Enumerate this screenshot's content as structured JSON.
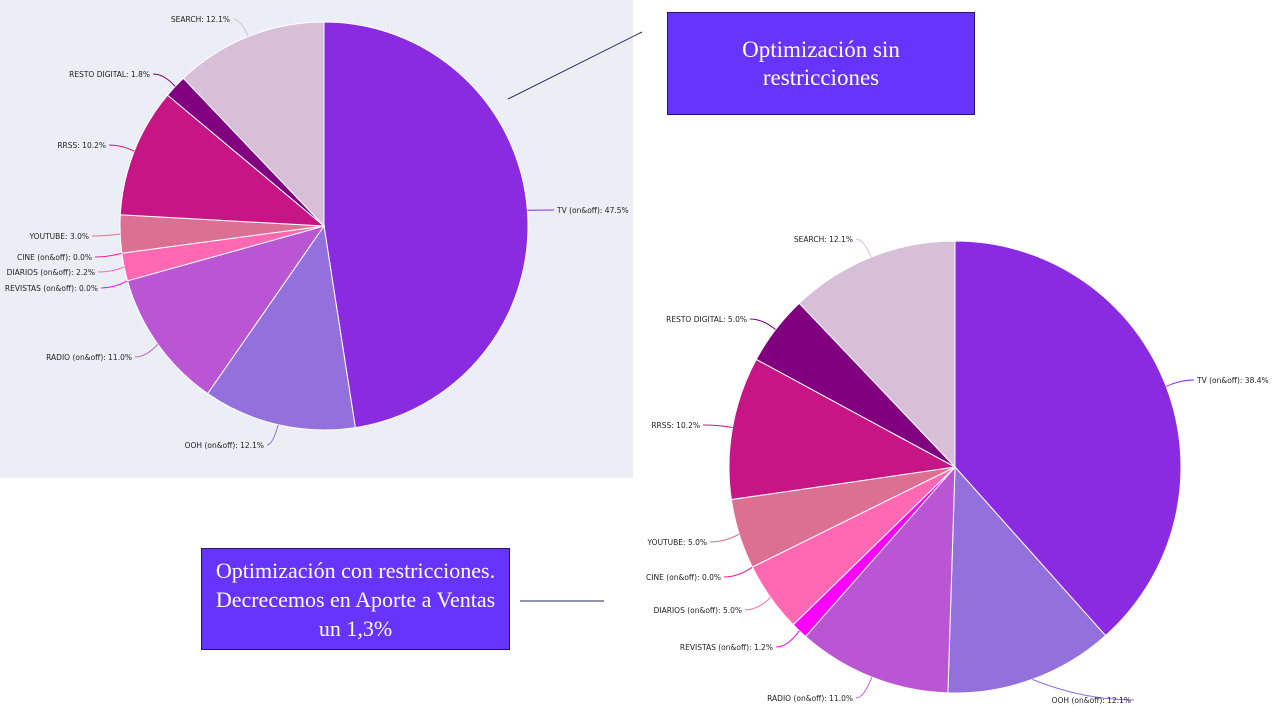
{
  "chart_data": [
    {
      "type": "pie",
      "title": "",
      "start_angle_deg": 0,
      "slices": [
        {
          "label": "TV (on&off): 47.5%",
          "value": 47.5,
          "color": "#8a2be2"
        },
        {
          "label": "OOH (on&off): 12.1%",
          "value": 12.1,
          "color": "#9370db"
        },
        {
          "label": "RADIO (on&off): 11.0%",
          "value": 11.0,
          "color": "#ba55d3"
        },
        {
          "label": "REVISTAS (on&off): 0.0%",
          "value": 0.0,
          "color": "#ff00ff"
        },
        {
          "label": "DIARIOS (on&off): 2.2%",
          "value": 2.2,
          "color": "#ff69b4"
        },
        {
          "label": "CINE (on&off): 0.0%",
          "value": 0.0,
          "color": "#ff1493"
        },
        {
          "label": "YOUTUBE: 3.0%",
          "value": 3.0,
          "color": "#db7093"
        },
        {
          "label": "RRSS: 10.2%",
          "value": 10.2,
          "color": "#c71585"
        },
        {
          "label": "RESTO DIGITAL: 1.8%",
          "value": 1.8,
          "color": "#800080"
        },
        {
          "label": "SEARCH: 12.1%",
          "value": 12.1,
          "color": "#d8bfd8"
        }
      ]
    },
    {
      "type": "pie",
      "title": "",
      "start_angle_deg": 0,
      "slices": [
        {
          "label": "TV (on&off): 38.4%",
          "value": 38.4,
          "color": "#8a2be2"
        },
        {
          "label": "OOH (on&off): 12.1%",
          "value": 12.1,
          "color": "#9370db"
        },
        {
          "label": "RADIO (on&off): 11.0%",
          "value": 11.0,
          "color": "#ba55d3"
        },
        {
          "label": "REVISTAS (on&off): 1.2%",
          "value": 1.2,
          "color": "#ff00ff"
        },
        {
          "label": "DIARIOS (on&off): 5.0%",
          "value": 5.0,
          "color": "#ff69b4"
        },
        {
          "label": "CINE (on&off): 0.0%",
          "value": 0.0,
          "color": "#ff1493"
        },
        {
          "label": "YOUTUBE: 5.0%",
          "value": 5.0,
          "color": "#db7093"
        },
        {
          "label": "RRSS: 10.2%",
          "value": 10.2,
          "color": "#c71585"
        },
        {
          "label": "RESTO DIGITAL: 5.0%",
          "value": 5.0,
          "color": "#800080"
        },
        {
          "label": "SEARCH: 12.1%",
          "value": 12.1,
          "color": "#d8bfd8"
        }
      ]
    }
  ],
  "callouts": {
    "top": "Optimización sin restricciones",
    "bottom": "Optimización con restricciones. Decrecemos en Aporte a Ventas un 1,3%"
  },
  "colors": {
    "callout_fill": "#6633ff",
    "chart1_background": "#eceef5",
    "connector_line": "#1f2a5a"
  }
}
